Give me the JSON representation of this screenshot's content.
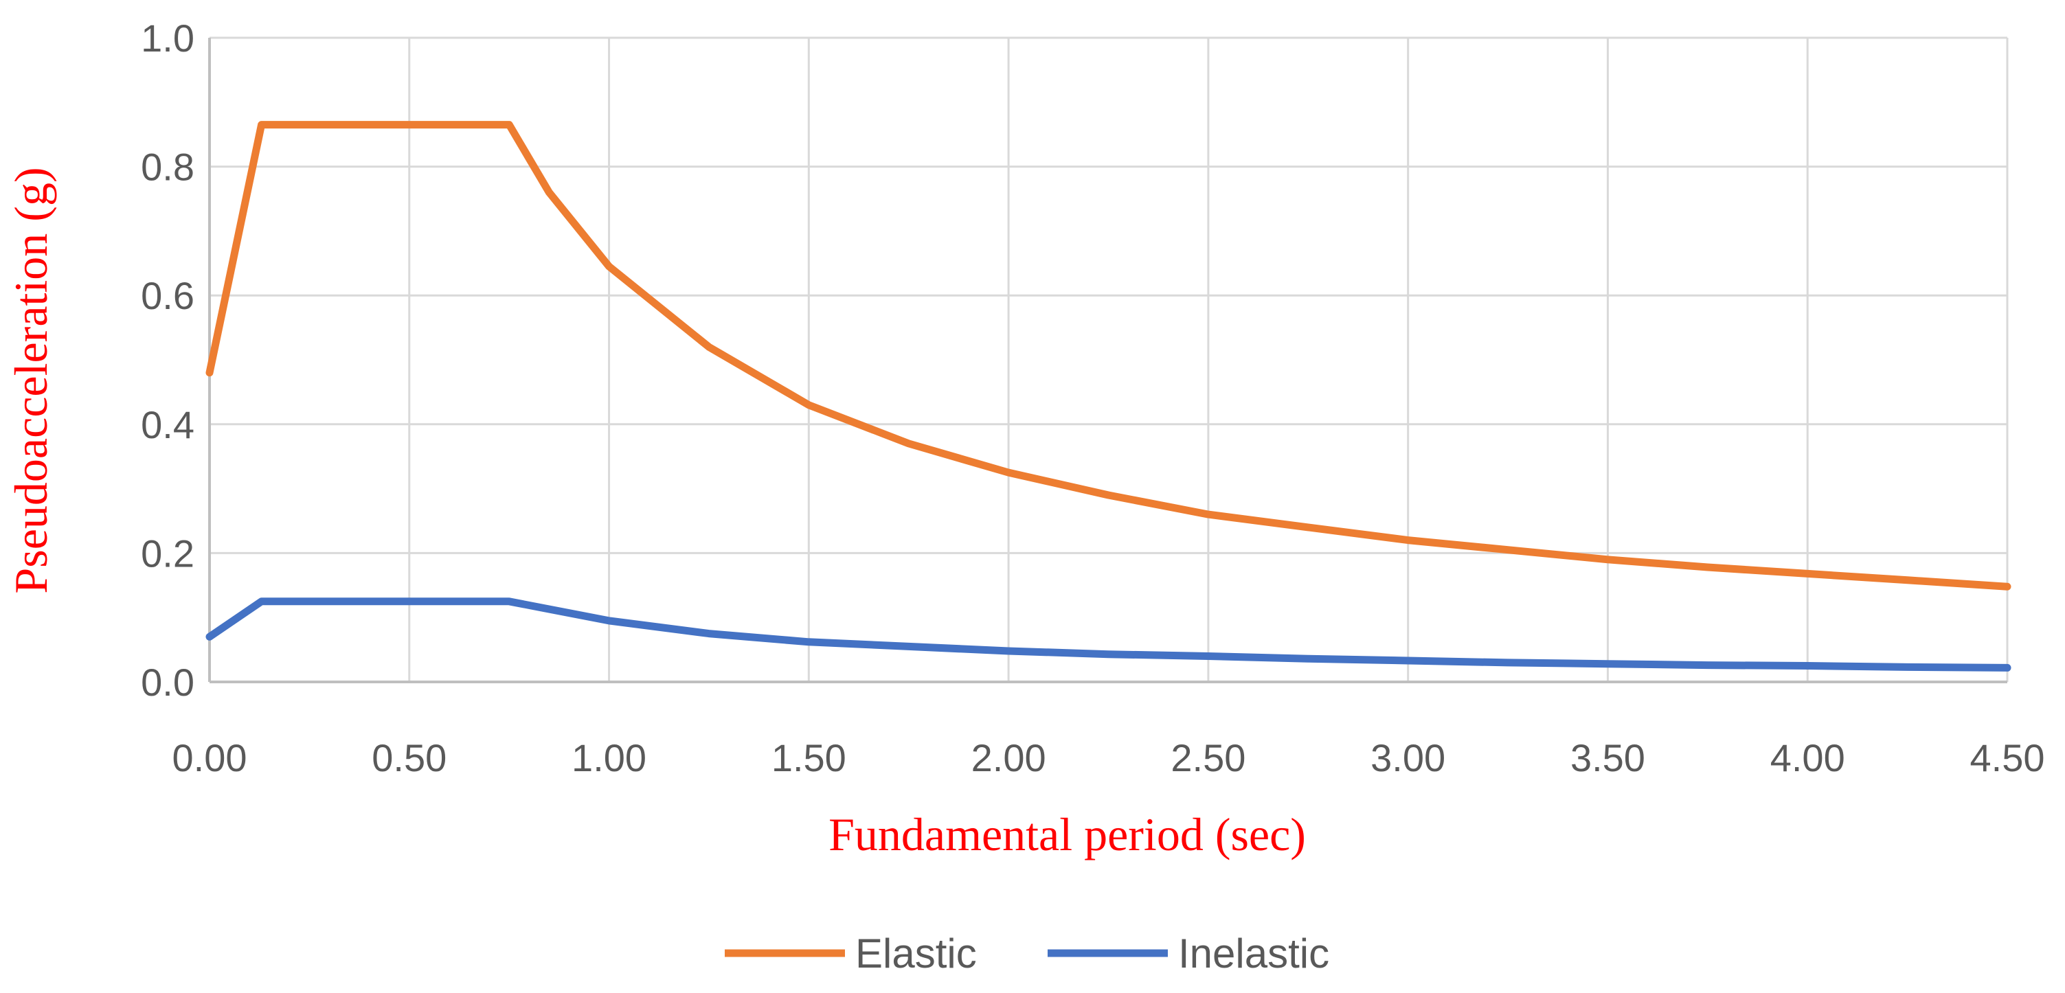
{
  "chart_data": {
    "type": "line",
    "title": "",
    "xlabel": "Fundamental period (sec)",
    "ylabel": "Pseudoacceleration (g)",
    "xlim": [
      0,
      4.5
    ],
    "ylim": [
      0,
      1.0
    ],
    "xticks": [
      0,
      0.5,
      1.0,
      1.5,
      2.0,
      2.5,
      3.0,
      3.5,
      4.0,
      4.5
    ],
    "xtick_labels": [
      "0.00",
      "0.50",
      "1.00",
      "1.50",
      "2.00",
      "2.50",
      "3.00",
      "3.50",
      "4.00",
      "4.50"
    ],
    "yticks": [
      0,
      0.2,
      0.4,
      0.6,
      0.8,
      1.0
    ],
    "ytick_labels": [
      "0.0",
      "0.2",
      "0.4",
      "0.6",
      "0.8",
      "1.0"
    ],
    "grid": true,
    "legend_position": "bottom-center",
    "colors": {
      "axis_title": "#ff0000",
      "grid": "#d9d9d9",
      "axis": "#bfbfbf"
    },
    "series": [
      {
        "name": "Elastic",
        "color": "#ed7d31",
        "points": [
          [
            0.0,
            0.48
          ],
          [
            0.13,
            0.865
          ],
          [
            0.25,
            0.865
          ],
          [
            0.5,
            0.865
          ],
          [
            0.75,
            0.865
          ],
          [
            0.85,
            0.76
          ],
          [
            1.0,
            0.645
          ],
          [
            1.25,
            0.52
          ],
          [
            1.5,
            0.43
          ],
          [
            1.75,
            0.37
          ],
          [
            2.0,
            0.325
          ],
          [
            2.25,
            0.29
          ],
          [
            2.5,
            0.26
          ],
          [
            2.75,
            0.24
          ],
          [
            3.0,
            0.22
          ],
          [
            3.25,
            0.205
          ],
          [
            3.5,
            0.19
          ],
          [
            3.75,
            0.178
          ],
          [
            4.0,
            0.168
          ],
          [
            4.25,
            0.158
          ],
          [
            4.5,
            0.148
          ]
        ]
      },
      {
        "name": "Inelastic",
        "color": "#4472c4",
        "points": [
          [
            0.0,
            0.07
          ],
          [
            0.13,
            0.125
          ],
          [
            0.25,
            0.125
          ],
          [
            0.5,
            0.125
          ],
          [
            0.75,
            0.125
          ],
          [
            1.0,
            0.095
          ],
          [
            1.25,
            0.075
          ],
          [
            1.5,
            0.062
          ],
          [
            1.75,
            0.055
          ],
          [
            2.0,
            0.048
          ],
          [
            2.25,
            0.043
          ],
          [
            2.5,
            0.04
          ],
          [
            2.75,
            0.036
          ],
          [
            3.0,
            0.033
          ],
          [
            3.25,
            0.03
          ],
          [
            3.5,
            0.028
          ],
          [
            3.75,
            0.026
          ],
          [
            4.0,
            0.025
          ],
          [
            4.25,
            0.023
          ],
          [
            4.5,
            0.022
          ]
        ]
      }
    ]
  }
}
